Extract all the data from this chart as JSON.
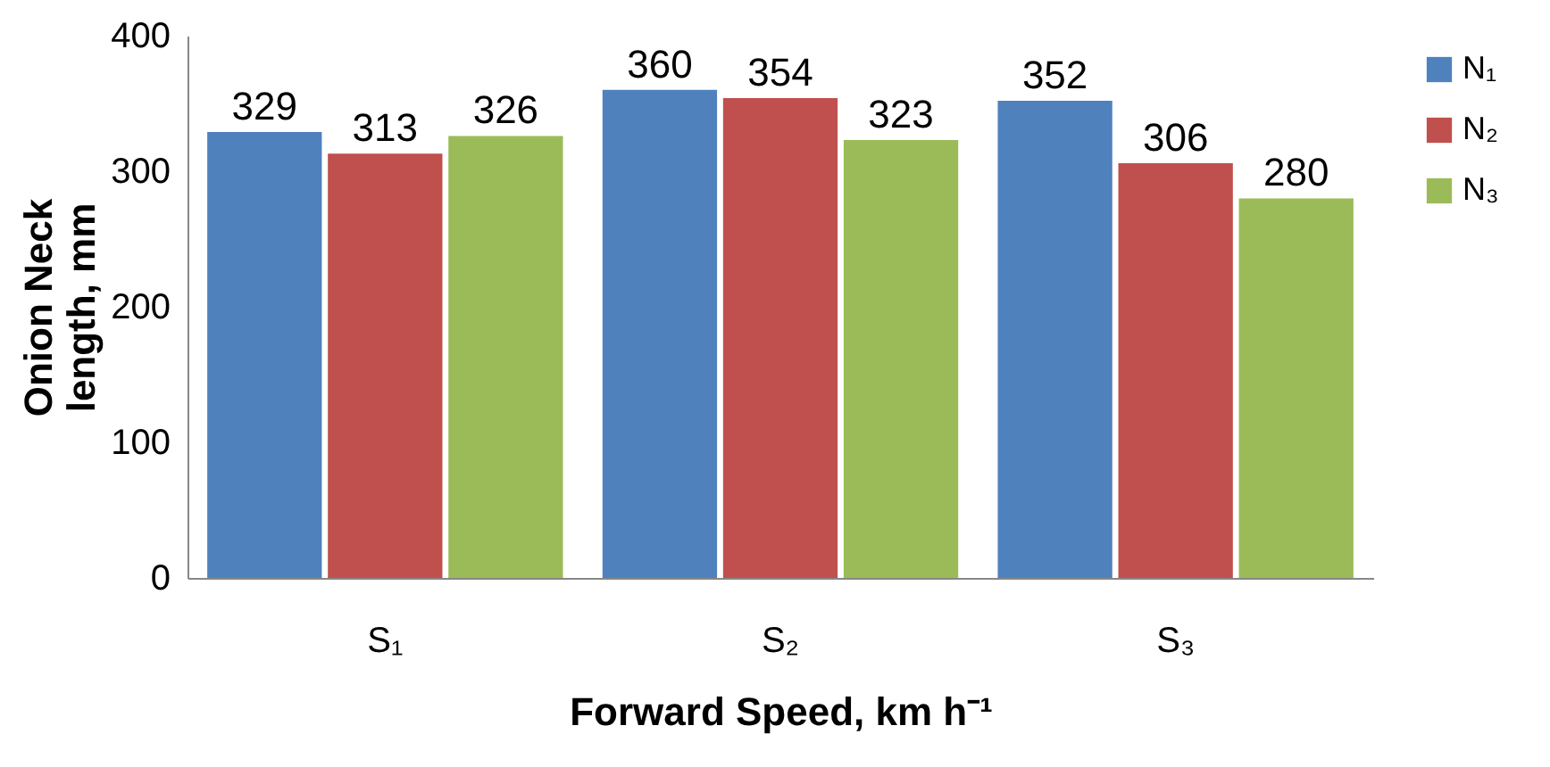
{
  "chart_data": {
    "type": "bar",
    "xlabel": "Forward Speed, km h⁻¹",
    "ylabel": "Onion Neck length, mm",
    "categories": [
      "S₁",
      "S₂",
      "S₃"
    ],
    "series": [
      {
        "name": "N₁",
        "color": "#4f81bd",
        "values": [
          329,
          360,
          352
        ]
      },
      {
        "name": "N₂",
        "color": "#c0504d",
        "values": [
          313,
          354,
          306
        ]
      },
      {
        "name": "N₃",
        "color": "#9bbb59",
        "values": [
          326,
          323,
          280
        ]
      }
    ],
    "ylim": [
      0,
      400
    ],
    "yticks": [
      0,
      100,
      200,
      300,
      400
    ],
    "grid": false,
    "legend": "right",
    "data_labels": true
  }
}
